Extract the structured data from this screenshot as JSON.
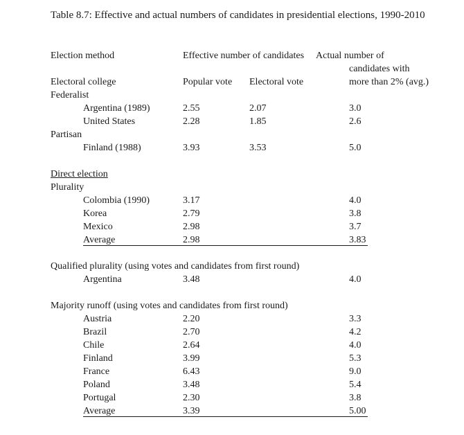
{
  "title": "Table 8.7: Effective and actual numbers of candidates in presidential elections, 1990-2010",
  "headers": {
    "election_method": "Election method",
    "effective_number": "Effective number of candidates",
    "actual_line1": "Actual number of",
    "actual_line2": "candidates with",
    "actual_line3": "more than 2% (avg.)",
    "popular_vote": "Popular vote",
    "electoral_vote": "Electoral vote"
  },
  "sections": {
    "electoral_college": "Electoral college",
    "federalist": "Federalist",
    "partisan": "Partisan",
    "direct_election": "Direct election",
    "plurality": "Plurality",
    "qualified_plurality": "Qualified plurality (using votes and candidates from first round)",
    "majority_runoff": "Majority runoff (using votes and candidates from first round)"
  },
  "federalist_rows": [
    {
      "country": "Argentina (1989)",
      "popular": "2.55",
      "electoral": "2.07",
      "actual": "3.0"
    },
    {
      "country": "United States",
      "popular": "2.28",
      "electoral": "1.85",
      "actual": "2.6"
    }
  ],
  "partisan_rows": [
    {
      "country": "Finland (1988)",
      "popular": "3.93",
      "electoral": "3.53",
      "actual": "5.0"
    }
  ],
  "plurality_rows": [
    {
      "country": "Colombia (1990)",
      "popular": "3.17",
      "actual": "4.0"
    },
    {
      "country": "Korea",
      "popular": "2.79",
      "actual": "3.8"
    },
    {
      "country": "Mexico",
      "popular": "2.98",
      "actual": "3.7"
    }
  ],
  "plurality_average": {
    "label": "Average",
    "popular": "2.98",
    "actual": "3.83"
  },
  "qualified_rows": [
    {
      "country": "Argentina",
      "popular": "3.48",
      "actual": "4.0"
    }
  ],
  "runoff_rows": [
    {
      "country": "Austria",
      "popular": "2.20",
      "actual": "3.3"
    },
    {
      "country": "Brazil",
      "popular": "2.70",
      "actual": "4.2"
    },
    {
      "country": "Chile",
      "popular": "2.64",
      "actual": "4.0"
    },
    {
      "country": "Finland",
      "popular": "3.99",
      "actual": "5.3"
    },
    {
      "country": "France",
      "popular": "6.43",
      "actual": "9.0"
    },
    {
      "country": "Poland",
      "popular": "3.48",
      "actual": "5.4"
    },
    {
      "country": "Portugal",
      "popular": "2.30",
      "actual": "3.8"
    }
  ],
  "runoff_average": {
    "label": "Average",
    "popular": "3.39",
    "actual": "5.00"
  }
}
